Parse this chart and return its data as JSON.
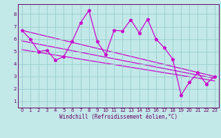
{
  "xlabel": "Windchill (Refroidissement éolien,°C)",
  "bg_color": "#c2e8e8",
  "line_color": "#cc00cc",
  "grid_color": "#99cccc",
  "axis_color": "#660066",
  "xlim": [
    -0.5,
    23.5
  ],
  "ylim": [
    0.5,
    8.8
  ],
  "xticks": [
    0,
    1,
    2,
    3,
    4,
    5,
    6,
    7,
    8,
    9,
    10,
    11,
    12,
    13,
    14,
    15,
    16,
    17,
    18,
    19,
    20,
    21,
    22,
    23
  ],
  "yticks": [
    1,
    2,
    3,
    4,
    5,
    6,
    7,
    8
  ],
  "main_line_x": [
    0,
    1,
    2,
    3,
    4,
    5,
    6,
    7,
    8,
    9,
    10,
    11,
    12,
    13,
    14,
    15,
    16,
    17,
    18,
    19,
    20,
    21,
    22,
    23
  ],
  "main_line_y": [
    6.7,
    6.0,
    5.0,
    5.1,
    4.3,
    4.6,
    5.8,
    7.3,
    8.3,
    5.8,
    4.75,
    6.7,
    6.65,
    7.55,
    6.5,
    7.6,
    6.0,
    5.3,
    4.4,
    1.5,
    2.55,
    3.3,
    2.4,
    3.0
  ],
  "trend1_x": [
    0,
    23
  ],
  "trend1_y": [
    6.7,
    3.0
  ],
  "trend2_x": [
    0,
    23
  ],
  "trend2_y": [
    5.85,
    2.85
  ],
  "trend3_x": [
    0,
    23
  ],
  "trend3_y": [
    5.15,
    2.65
  ],
  "tick_fontsize": 5.0,
  "xlabel_fontsize": 5.5,
  "marker_size": 3.5,
  "line_width": 0.9
}
